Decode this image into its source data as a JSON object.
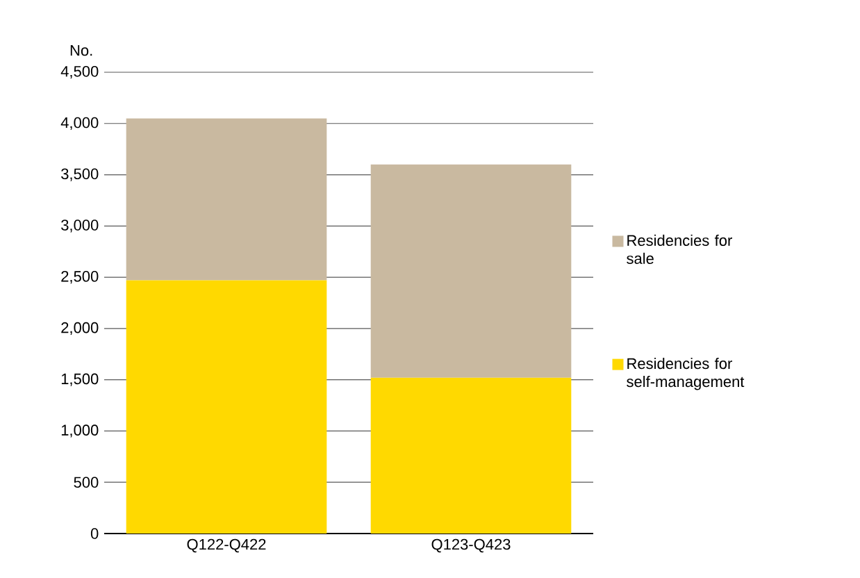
{
  "chart_data": {
    "type": "bar",
    "ylabel": "No.",
    "stacked": true,
    "categories": [
      "Q122-Q422",
      "Q123-Q423"
    ],
    "series": [
      {
        "name": "Residencies for self-management",
        "color": "#ffd900",
        "values": [
          2470,
          1520
        ]
      },
      {
        "name": "Residencies for sale",
        "color": "#c9b9a0",
        "values": [
          1580,
          2080
        ]
      }
    ],
    "ylim": [
      0,
      4500
    ],
    "yticks": [
      0,
      500,
      {
        "value": 1000,
        "label": "1,000"
      },
      {
        "value": 1500,
        "label": "1,500"
      },
      {
        "value": 2000,
        "label": "2,000"
      },
      {
        "value": 2500,
        "label": "2,500"
      },
      {
        "value": 3000,
        "label": "3,000"
      },
      {
        "value": 3500,
        "label": "3,500"
      },
      {
        "value": 4000,
        "label": "4,000"
      },
      {
        "value": 4500,
        "label": "4,500"
      }
    ],
    "grid": "y",
    "legend": "right"
  }
}
